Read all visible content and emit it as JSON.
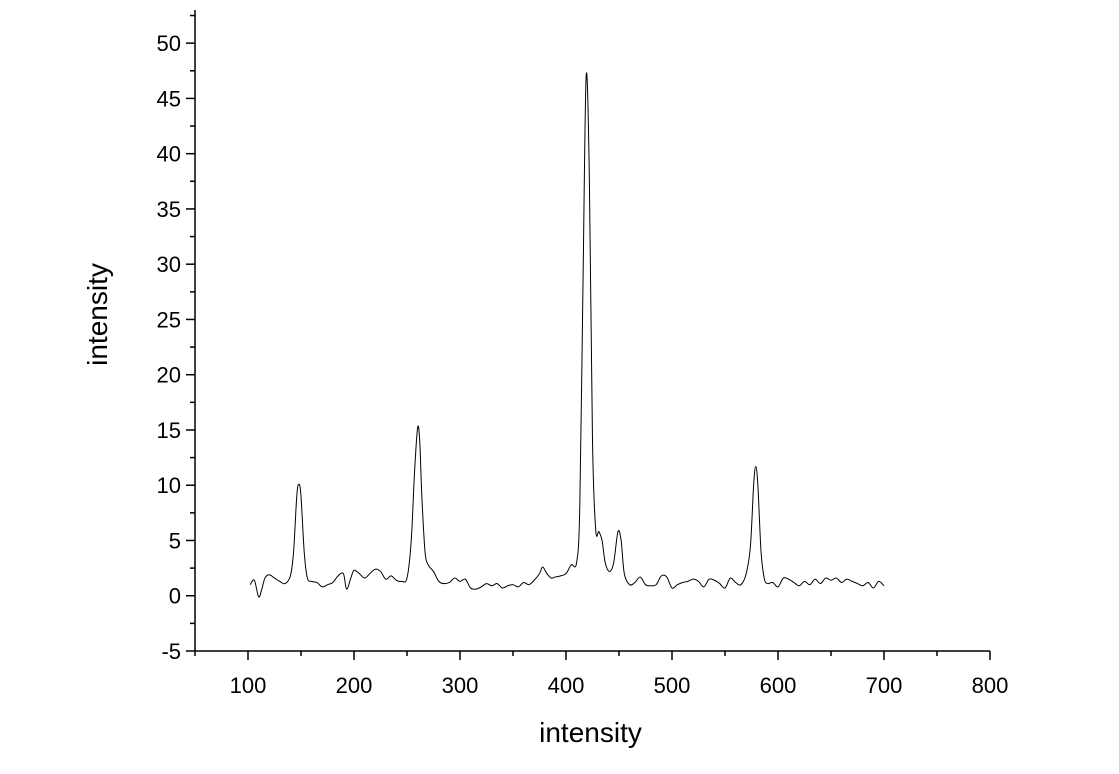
{
  "chart_data": {
    "type": "line",
    "title": "",
    "xlabel": "intensity",
    "ylabel": "intensity",
    "xlim": [
      50,
      800
    ],
    "ylim": [
      -5,
      53
    ],
    "x_ticks": [
      100,
      200,
      300,
      400,
      500,
      600,
      700,
      800
    ],
    "y_ticks": [
      -5,
      0,
      5,
      10,
      15,
      20,
      25,
      30,
      35,
      40,
      45,
      50
    ],
    "x_tick_labels": [
      "100",
      "200",
      "300",
      "400",
      "500",
      "600",
      "700",
      "800"
    ],
    "y_tick_labels": [
      "-5",
      "0",
      "5",
      "10",
      "15",
      "20",
      "25",
      "30",
      "35",
      "40",
      "45",
      "50"
    ],
    "grid": false,
    "legend": "none",
    "series": [
      {
        "color": "#000000",
        "x": [
          102,
          106,
          110,
          113,
          116,
          120,
          125,
          130,
          135,
          140,
          143,
          146,
          148,
          150,
          153,
          156,
          160,
          165,
          170,
          175,
          180,
          185,
          190,
          193,
          197,
          200,
          205,
          210,
          215,
          220,
          225,
          230,
          235,
          240,
          245,
          250,
          254,
          257,
          260,
          262,
          264,
          267,
          270,
          275,
          280,
          285,
          290,
          295,
          300,
          305,
          310,
          315,
          320,
          325,
          330,
          335,
          340,
          345,
          350,
          355,
          360,
          365,
          370,
          375,
          378,
          382,
          386,
          390,
          395,
          400,
          405,
          410,
          413,
          416,
          419,
          422,
          425,
          428,
          431,
          434,
          437,
          441,
          445,
          449,
          452,
          455,
          460,
          465,
          470,
          475,
          480,
          485,
          490,
          495,
          500,
          505,
          510,
          515,
          520,
          525,
          530,
          535,
          540,
          545,
          550,
          555,
          560,
          565,
          570,
          574,
          577,
          579,
          581,
          584,
          587,
          590,
          595,
          600,
          605,
          610,
          615,
          620,
          625,
          630,
          635,
          640,
          645,
          650,
          655,
          660,
          665,
          670,
          675,
          680,
          685,
          690,
          695,
          700
        ],
        "y": [
          1.0,
          1.4,
          -0.1,
          0.6,
          1.6,
          1.9,
          1.6,
          1.3,
          1.1,
          1.8,
          4.0,
          9.0,
          10.1,
          9.0,
          4.0,
          1.6,
          1.3,
          1.2,
          0.8,
          1.0,
          1.2,
          1.8,
          2.0,
          0.6,
          1.6,
          2.3,
          2.0,
          1.6,
          2.0,
          2.4,
          2.2,
          1.5,
          1.8,
          1.4,
          1.3,
          1.6,
          5.0,
          11.0,
          15.2,
          14.0,
          9.0,
          4.0,
          2.8,
          2.2,
          1.3,
          1.1,
          1.2,
          1.6,
          1.3,
          1.5,
          0.7,
          0.6,
          0.8,
          1.1,
          0.9,
          1.1,
          0.7,
          0.9,
          1.0,
          0.8,
          1.2,
          1.0,
          1.4,
          2.0,
          2.6,
          2.0,
          1.6,
          1.7,
          1.8,
          2.0,
          2.8,
          3.0,
          8.0,
          28.0,
          47.0,
          38.0,
          14.0,
          6.0,
          5.8,
          5.0,
          3.0,
          2.2,
          3.0,
          5.8,
          5.0,
          2.0,
          1.0,
          1.2,
          1.7,
          1.0,
          0.9,
          1.0,
          1.8,
          1.7,
          0.7,
          1.0,
          1.2,
          1.3,
          1.5,
          1.3,
          0.8,
          1.5,
          1.4,
          1.1,
          0.7,
          1.6,
          1.2,
          1.0,
          2.0,
          4.5,
          10.0,
          11.7,
          10.0,
          4.0,
          1.6,
          1.1,
          1.2,
          0.8,
          1.6,
          1.5,
          1.2,
          0.9,
          1.3,
          1.0,
          1.5,
          1.1,
          1.6,
          1.4,
          1.6,
          1.2,
          1.5,
          1.3,
          1.1,
          0.9,
          1.2,
          0.7,
          1.3,
          0.9
        ]
      }
    ]
  }
}
